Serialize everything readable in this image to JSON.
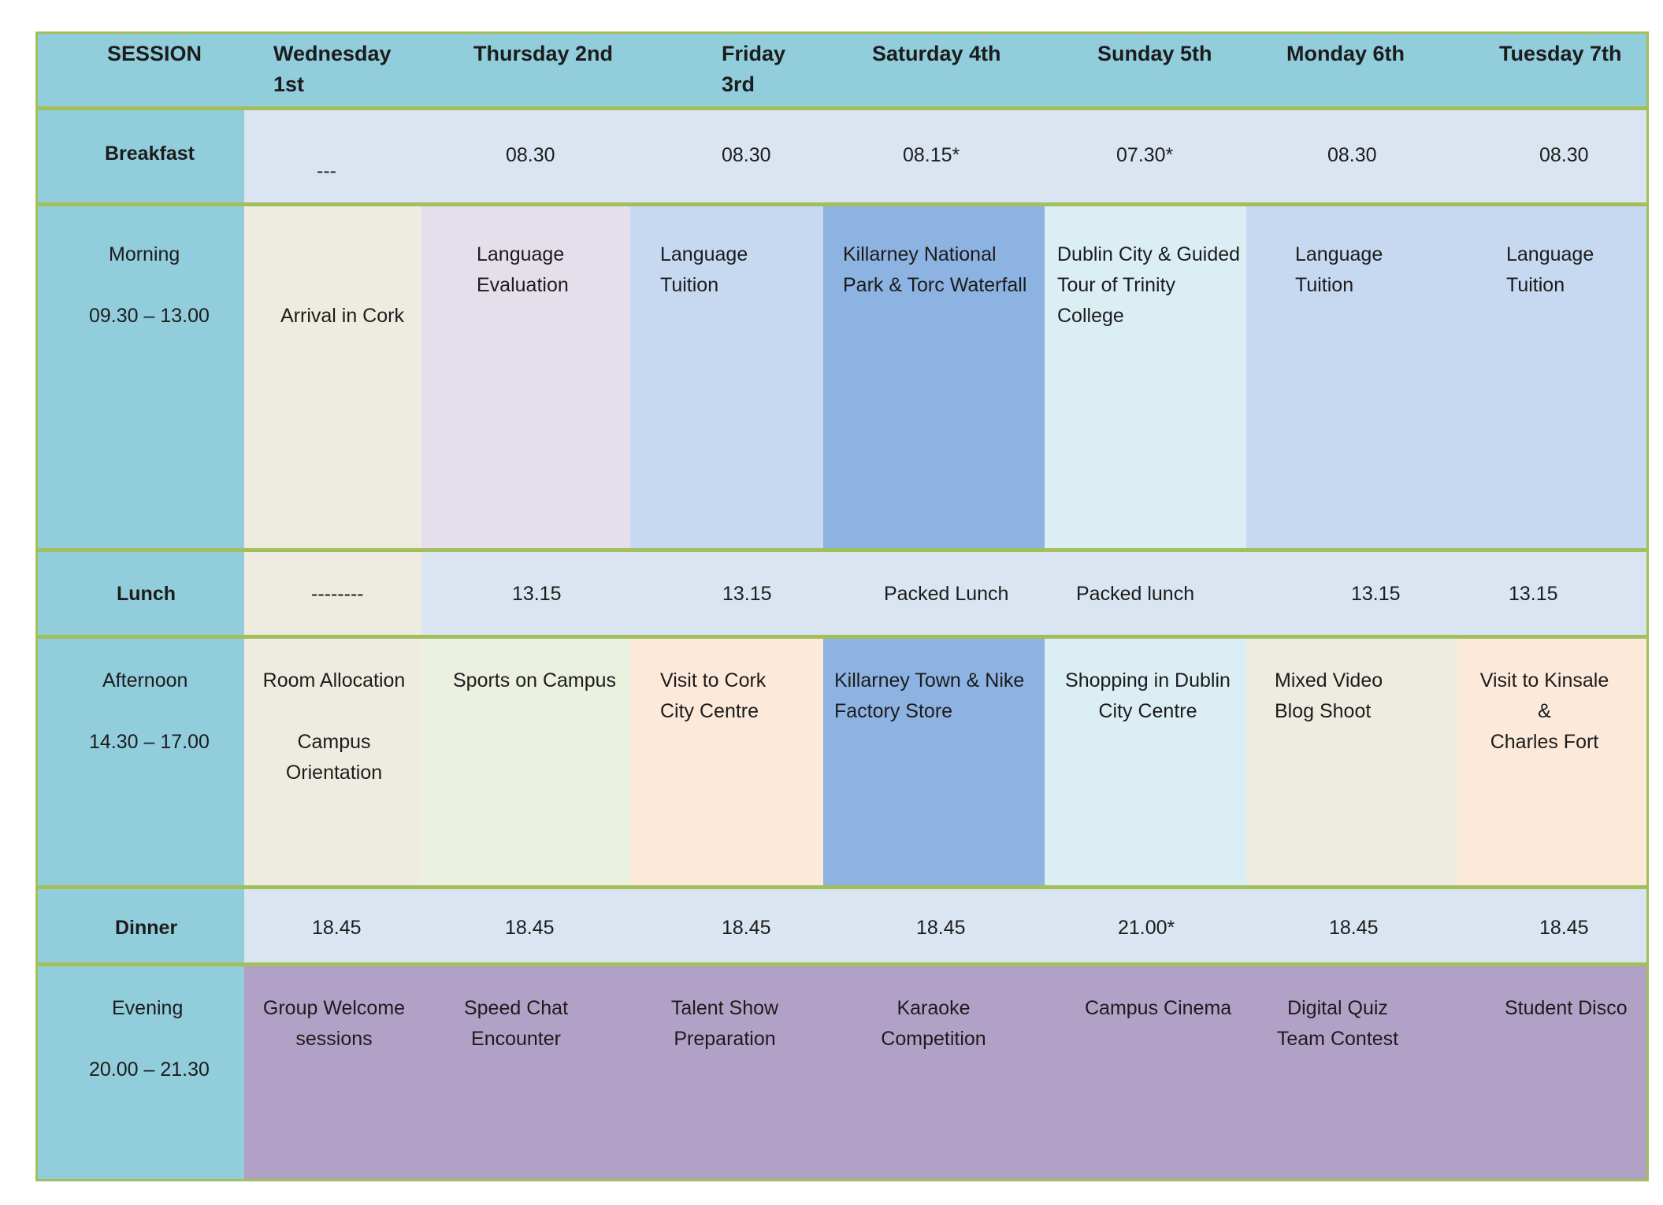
{
  "header": {
    "session_label": "SESSION",
    "days": [
      "Wednesday 1st",
      "Thursday 2nd",
      "Friday 3rd",
      "Saturday 4th",
      "Sunday 5th",
      "Monday 6th",
      "Tuesday 7th"
    ]
  },
  "breakfast": {
    "label": "Breakfast",
    "times": [
      "---",
      "08.30",
      "08.30",
      "08.15*",
      "07.30*",
      "08.30",
      "08.30"
    ]
  },
  "morning": {
    "label": "Morning",
    "time": "09.30 – 13.00",
    "activities": [
      "Arrival in Cork",
      "Language\nEvaluation",
      "Language\nTuition",
      "Killarney National\nPark  & Torc Waterfall",
      "Dublin City & Guided\nTour of Trinity College",
      "Language\nTuition",
      "Language\nTuition"
    ]
  },
  "lunch": {
    "label": "Lunch",
    "times": [
      "--------",
      "13.15",
      "13.15",
      "Packed Lunch",
      "Packed  lunch",
      "13.15",
      "13.15"
    ]
  },
  "afternoon": {
    "label": "Afternoon",
    "time": "14.30 – 17.00",
    "activities": [
      "Room Allocation\n\nCampus\nOrientation",
      "Sports on Campus",
      "Visit to Cork\nCity  Centre",
      "Killarney Town & Nike\nFactory Store",
      "Shopping in Dublin\nCity Centre",
      "Mixed Video\nBlog Shoot",
      "Visit to Kinsale\n&\nCharles Fort"
    ]
  },
  "dinner": {
    "label": "Dinner",
    "times": [
      "18.45",
      "18.45",
      "18.45",
      "18.45",
      "21.00*",
      "18.45",
      "18.45"
    ]
  },
  "evening": {
    "label": "Evening",
    "time": "20.00 – 21.30",
    "activities": [
      "Group Welcome\nsessions",
      "Speed Chat\nEncounter",
      "Talent Show\nPreparation",
      "Karaoke\nCompetition",
      "Campus Cinema",
      "Digital Quiz\nTeam Contest",
      "Student Disco"
    ]
  },
  "colors": {
    "border": "#a3bf5c",
    "label_column": "#92cddc",
    "meal_row": "#dbe5f1",
    "wednesday": "#eeece1",
    "evaluation": "#e5dfec",
    "tuition": "#c6d9f0",
    "excursion": "#8db3e2",
    "dublin": "#daeef3",
    "sports": "#ebf1de",
    "cork_kinsale": "#fde9d9",
    "evening": "#b2a1c7"
  }
}
